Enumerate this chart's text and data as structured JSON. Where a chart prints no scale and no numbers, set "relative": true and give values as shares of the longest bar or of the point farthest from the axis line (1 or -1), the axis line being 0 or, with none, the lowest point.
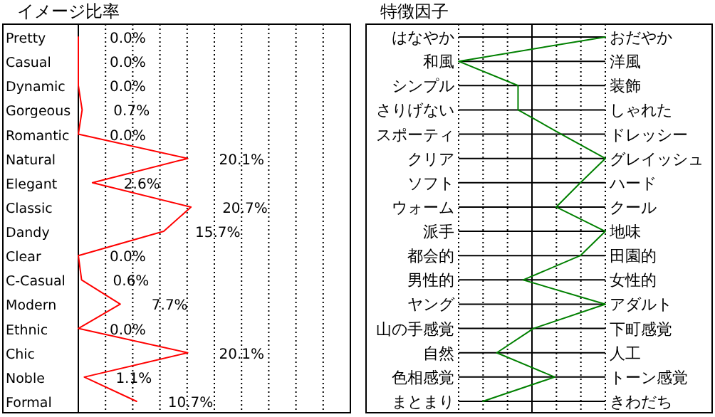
{
  "chart_data": [
    {
      "type": "line",
      "orientation": "horizontal",
      "title": "イメージ比率",
      "categories": [
        "Pretty",
        "Casual",
        "Dynamic",
        "Gorgeous",
        "Romantic",
        "Natural",
        "Elegant",
        "Classic",
        "Dandy",
        "Clear",
        "C-Casual",
        "Modern",
        "Ethnic",
        "Chic",
        "Noble",
        "Formal"
      ],
      "series": [
        {
          "color": "#ff0000",
          "values": [
            0.0,
            0.0,
            0.0,
            0.7,
            0.0,
            20.1,
            2.6,
            20.7,
            15.7,
            0.0,
            0.6,
            7.7,
            0.0,
            20.1,
            1.1,
            10.7
          ],
          "value_labels": [
            "0.0%",
            "0.0%",
            "0.0%",
            "0.7%",
            "0.0%",
            "20.1%",
            "2.6%",
            "20.7%",
            "15.7%",
            "0.0%",
            "0.6%",
            "7.7%",
            "0.0%",
            "20.1%",
            "1.1%",
            "10.7%"
          ]
        }
      ],
      "xlim": [
        0,
        50
      ],
      "xticks": [
        {
          "value": 5,
          "label": null
        },
        {
          "value": 10,
          "label": null
        },
        {
          "value": 15,
          "label": null
        },
        {
          "value": 20,
          "label": null
        },
        {
          "value": 25,
          "label": null
        },
        {
          "value": 30,
          "label": null
        },
        {
          "value": 35,
          "label": null
        },
        {
          "value": 40,
          "label": null
        },
        {
          "value": 45,
          "label": null
        }
      ],
      "grid": "x"
    },
    {
      "type": "line",
      "orientation": "horizontal",
      "title": "特徴因子",
      "relative": true,
      "categories": [
        "はなやか",
        "和風",
        "シンプル",
        "さりげない",
        "スポーティ",
        "クリア",
        "ソフト",
        "ウォーム",
        "派手",
        "都会的",
        "男性的",
        "ヤング",
        "山の手感覚",
        "自然",
        "色相感覚",
        "まとまり"
      ],
      "y2_categories": [
        "おだやか",
        "洋風",
        "装飾",
        "しゃれた",
        "ドレッシー",
        "グレイッシュ",
        "ハード",
        "クール",
        "地味",
        "田園的",
        "女性的",
        "アダルト",
        "下町感覚",
        "人工",
        "トーン感覚",
        "きわだち"
      ],
      "series": [
        {
          "color": "#008000",
          "values": [
            1,
            -1,
            -0.19,
            -0.19,
            0.4,
            1,
            0.66,
            0.33,
            1,
            0.66,
            -0.12,
            1,
            0.02,
            -0.48,
            0.31,
            -0.67
          ]
        }
      ],
      "grid": true
    }
  ]
}
